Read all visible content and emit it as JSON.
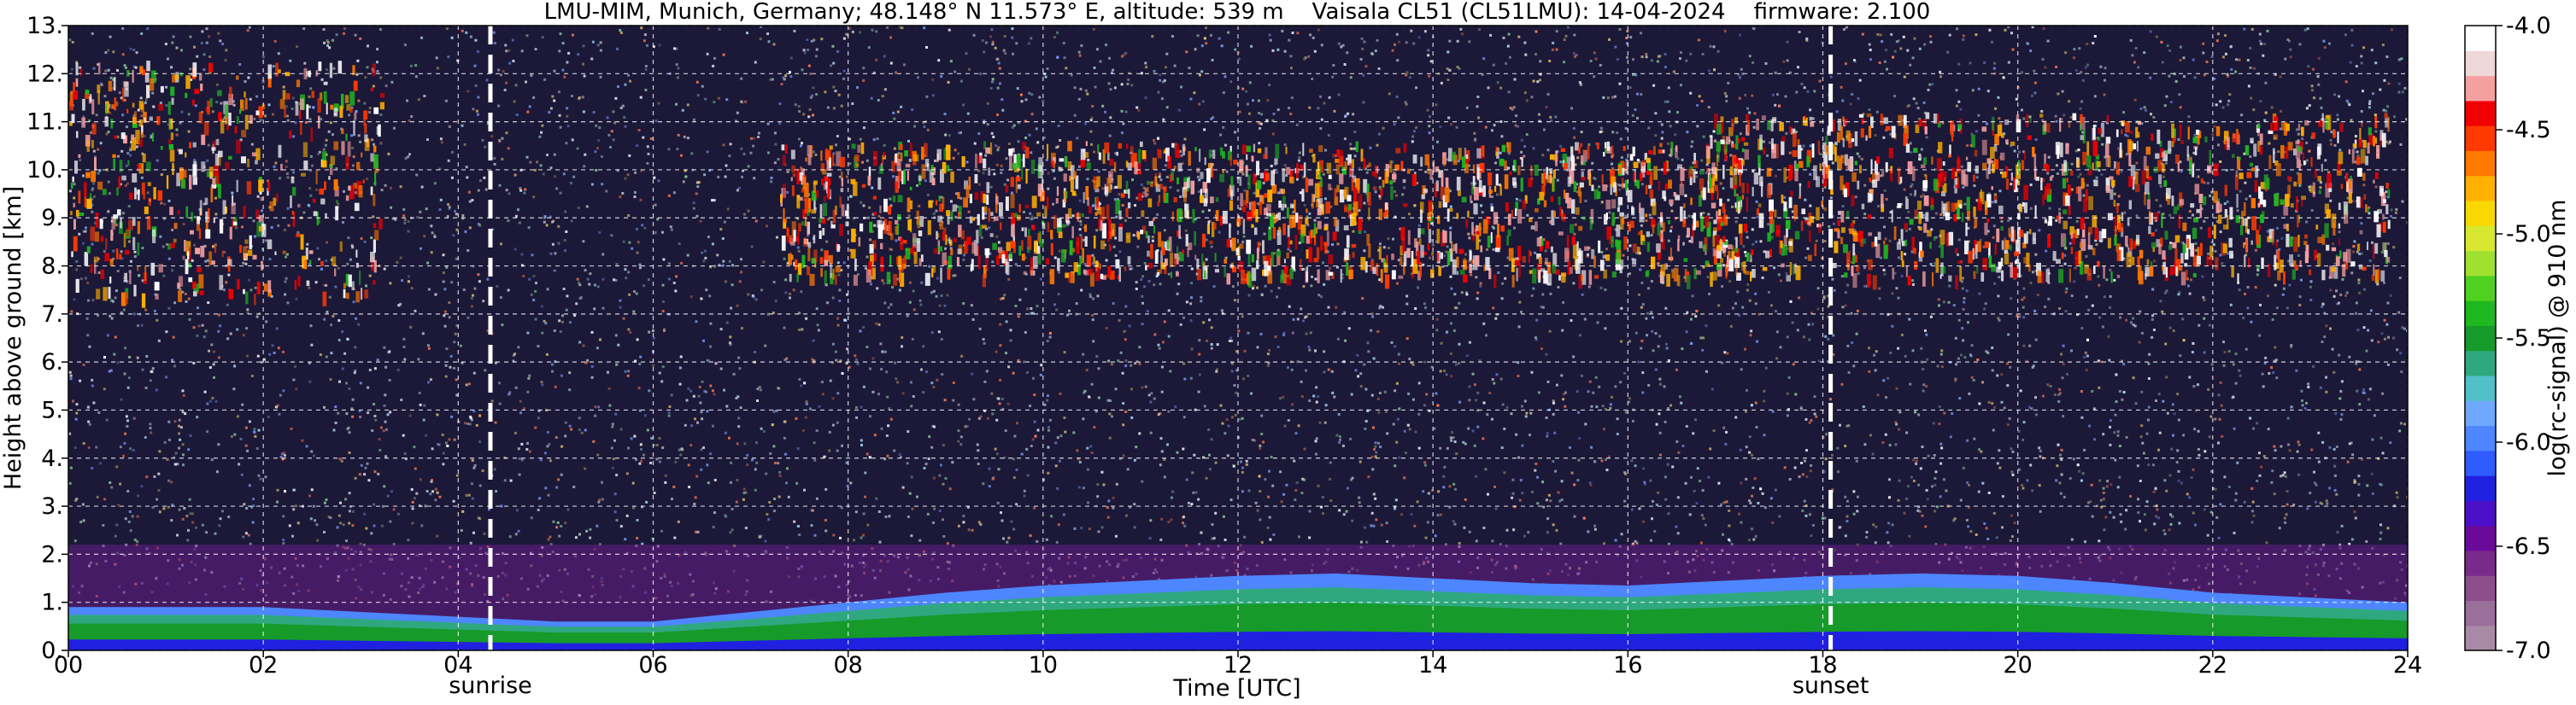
{
  "chart_data": {
    "type": "heatmap",
    "title": "LMU-MIM, Munich, Germany; 48.148° N 11.573° E, altitude: 539 m    Vaisala CL51 (CL51LMU): 14-04-2024    firmware: 2.100",
    "xlabel": "Time [UTC]",
    "ylabel": "Height above ground [km]",
    "xlim": [
      0,
      24
    ],
    "ylim": [
      0,
      13
    ],
    "x_ticks": [
      0,
      2,
      4,
      6,
      8,
      10,
      12,
      14,
      16,
      18,
      20,
      22,
      24
    ],
    "x_tick_labels": [
      "00",
      "02",
      "04",
      "06",
      "08",
      "10",
      "12",
      "14",
      "16",
      "18",
      "20",
      "22",
      "24"
    ],
    "y_ticks": [
      0,
      1,
      2,
      3,
      4,
      5,
      6,
      7,
      8,
      9,
      10,
      11,
      12,
      13
    ],
    "y_tick_labels": [
      "0.",
      "1.",
      "2.",
      "3.",
      "4.",
      "5.",
      "6.",
      "7.",
      "8.",
      "9.",
      "10.",
      "11.",
      "12.",
      "13."
    ],
    "grid": true,
    "vertical_markers": [
      {
        "x": 4.33,
        "label": "sunrise"
      },
      {
        "x": 18.08,
        "label": "sunset"
      }
    ],
    "colorbar": {
      "label": "log(rc-signal) @ 910 nm",
      "range": [
        -7.0,
        -4.0
      ],
      "ticks": [
        -7.0,
        -6.5,
        -6.0,
        -5.5,
        -5.0,
        -4.5,
        -4.0
      ],
      "tick_labels": [
        "-7.0",
        "-6.5",
        "-6.0",
        "-5.5",
        "-5.0",
        "-4.5",
        "-4.0"
      ],
      "colors": [
        "#a88aa6",
        "#9a6f9a",
        "#8c4f8c",
        "#7a2a8a",
        "#6a0a9a",
        "#4a10c8",
        "#2020e0",
        "#2f5cff",
        "#4d86ff",
        "#6fa8ff",
        "#52c0c8",
        "#2fa880",
        "#169a2a",
        "#20b820",
        "#50d020",
        "#a0e030",
        "#d8e830",
        "#f8d800",
        "#ffb000",
        "#ff7800",
        "#ff3a00",
        "#f00000",
        "#f5a0a0",
        "#efd8d8",
        "#ffffff"
      ]
    },
    "features": [
      {
        "name": "boundary-layer",
        "x_start": 0,
        "x_end": 24,
        "top_km": [
          0.9,
          0.9,
          0.9,
          0.8,
          0.7,
          0.6,
          0.6,
          0.8,
          1.0,
          1.2,
          1.35,
          1.45,
          1.55,
          1.6,
          1.5,
          1.4,
          1.35,
          1.45,
          1.55,
          1.6,
          1.55,
          1.4,
          1.2,
          1.1,
          1.0
        ]
      },
      {
        "name": "cirrus",
        "x_start": 0,
        "x_end": 3.2,
        "y_start_km": 7.4,
        "y_end_km": 12.3
      },
      {
        "name": "cirrus",
        "x_start": 7.3,
        "x_end": 17.2,
        "y_start_km": 7.8,
        "y_end_km": 10.6
      },
      {
        "name": "cirrus",
        "x_start": 16.8,
        "x_end": 23.8,
        "y_start_km": 7.8,
        "y_end_km": 11.2
      }
    ]
  }
}
